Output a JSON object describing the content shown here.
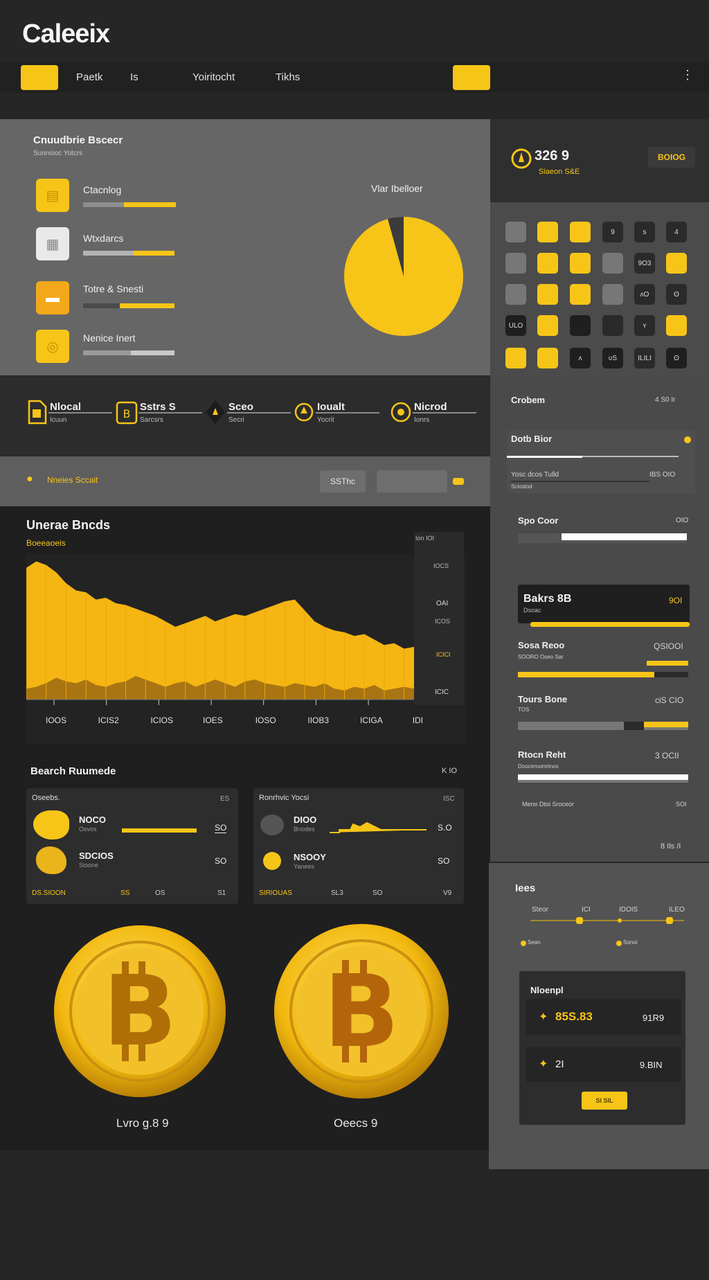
{
  "app": {
    "title": "Caleeix"
  },
  "nav": {
    "left_button": "",
    "links": [
      "Paetk",
      "Is",
      "Yoiritocht",
      "Tikhs"
    ],
    "right_button": "",
    "menu": "⋮"
  },
  "breakdown": {
    "title": "Cnuudbrie Bscecr",
    "subtitle": "Sunnsioc Yotcrs",
    "chart_title": "Vlar Ibelloer",
    "categories": [
      {
        "label": "Ctacnlog",
        "progress": 0.6
      },
      {
        "label": "Wtxdarcs",
        "progress": 0.45
      },
      {
        "label": "Totre & Snesti",
        "progress": 0.55
      },
      {
        "label": "Nenice Inert",
        "progress": 0.4
      }
    ],
    "pie_share": 0.96
  },
  "stats": [
    {
      "title": "Nlocal",
      "sub": "Icuun"
    },
    {
      "title": "Sstrs S",
      "sub": "Sarcsrs"
    },
    {
      "title": "Sceo",
      "sub": "Secri"
    },
    {
      "title": "Ioualt",
      "sub": "Yocrit"
    },
    {
      "title": "Nicrod",
      "sub": "Ionrs"
    }
  ],
  "filter": {
    "label": "Nneies Sccait",
    "button": "SSThc",
    "input_value": ""
  },
  "area_chart": {
    "title": "Unerae Bncds",
    "subtitle": "Boeeaoeis",
    "x_labels": [
      "IOOS",
      "ICIS2",
      "ICIOS",
      "IOES",
      "IOSO",
      "IIOB3",
      "ICIGA",
      "IDI"
    ],
    "right_labels": [
      "Ion IOI",
      "IOCS",
      "OAI",
      "ICOS",
      "ICICI",
      "ICIC"
    ]
  },
  "chart_data": {
    "type": "area",
    "title": "Unerae Bncds",
    "x": [
      0,
      1,
      2,
      3,
      4,
      5,
      6,
      7,
      8,
      9,
      10,
      11,
      12,
      13,
      14,
      15,
      16,
      17,
      18,
      19,
      20,
      21,
      22,
      23,
      24,
      25,
      26,
      27,
      28,
      29,
      30,
      31,
      32,
      33,
      34,
      35,
      36,
      37,
      38,
      39
    ],
    "series": [
      {
        "name": "",
        "values": [
          145,
          152,
          148,
          140,
          128,
          120,
          118,
          110,
          112,
          106,
          104,
          100,
          96,
          92,
          86,
          80,
          84,
          88,
          92,
          86,
          90,
          94,
          92,
          96,
          100,
          104,
          108,
          110,
          98,
          86,
          80,
          76,
          74,
          70,
          72,
          66,
          60,
          62,
          56,
          58
        ]
      },
      {
        "name": "",
        "values": [
          12,
          14,
          18,
          24,
          20,
          18,
          22,
          16,
          14,
          18,
          20,
          26,
          22,
          18,
          14,
          18,
          20,
          14,
          18,
          22,
          18,
          14,
          20,
          22,
          18,
          16,
          14,
          18,
          16,
          14,
          18,
          12,
          10,
          14,
          12,
          16,
          10,
          12,
          14,
          12
        ]
      }
    ],
    "grid": false
  },
  "breakdown_chart": {
    "type": "pie",
    "title": "Vlar Ibelloer",
    "values": [
      96,
      4
    ]
  },
  "search_returns": {
    "title": "Bearch Ruumede",
    "count": "K IO",
    "cards": [
      {
        "title": "Oseebs.",
        "corner": "ES",
        "rows": [
          {
            "name": "NOCO",
            "sub": "Osvos",
            "value": "SO"
          },
          {
            "name": "SDCIOS",
            "sub": "Sioone",
            "value": "SO"
          }
        ],
        "footer": [
          "DS.SIOON",
          "SS",
          "OS",
          "S1"
        ]
      },
      {
        "title": "Ronrhvic Yocsi",
        "corner": "ISC",
        "rows": [
          {
            "name": "DIOO",
            "sub": "Bnodes",
            "value": "S.O"
          },
          {
            "name": "NSOOY",
            "sub": "Yanees",
            "value": "SO"
          }
        ],
        "footer": [
          "SIRIOUAS",
          "SL3",
          "SO",
          "V9"
        ]
      }
    ]
  },
  "coins": [
    {
      "label": "Lvro g.8 9"
    },
    {
      "label": "Oeecs 9"
    }
  ],
  "balance": {
    "amount": "326 9",
    "sub": "Siaeon S&E",
    "tag": "BOIOG"
  },
  "grid_cells": [
    "",
    "",
    "",
    "9",
    "s",
    "4",
    "",
    "",
    "",
    "",
    "9O3",
    "",
    "",
    "",
    "",
    "",
    "ʌO",
    "ʘ",
    "ULO",
    "",
    "",
    "",
    "ʏ",
    "",
    "",
    "",
    "ʌ",
    "ʋS",
    "ILILI",
    "ʘ"
  ],
  "right_panel": {
    "header": "Crobem",
    "header_value": "4 S0 Ir",
    "card1_title": "Dotb Bior",
    "card1_line": "Yosc dcos Tulld",
    "card1_value": "IBS OIO",
    "card1_sub": "Sciostod",
    "card2_title": "Spo Coor",
    "card2_value": "OIO",
    "dark_title": "Bakrs 8B",
    "dark_sub": "Dsoac",
    "dark_value": "9OI",
    "rows": [
      {
        "title": "Sosa Reoo",
        "value": "QSIOOI",
        "sub": "SOORO Oseo Sar"
      },
      {
        "title": "Tours Bone",
        "value": "ciS CIO",
        "sub": "TOS"
      },
      {
        "title": "Rtocn Reht",
        "value": "3 OCII",
        "sub": "Dooceroomrinos"
      }
    ],
    "footer_left": "Meno Dtoi Sroceor",
    "footer_right": "SOI",
    "more": "8 Ils /I"
  },
  "right_bottom": {
    "title": "Iees",
    "labels": [
      "Steor",
      "ICI",
      "IDOIS",
      "ILEO"
    ],
    "legend": [
      "Sean",
      "Sonoi"
    ],
    "card_title": "Nloenpl",
    "entries": [
      {
        "amount": "85S.83",
        "value": "91R9"
      },
      {
        "amount": "2I",
        "value": "9.BIN"
      }
    ],
    "button": "SI SIL"
  },
  "colors": {
    "accent": "#f7c518",
    "background": "#262627",
    "panel": "#666667",
    "dark": "#1f1f20"
  }
}
